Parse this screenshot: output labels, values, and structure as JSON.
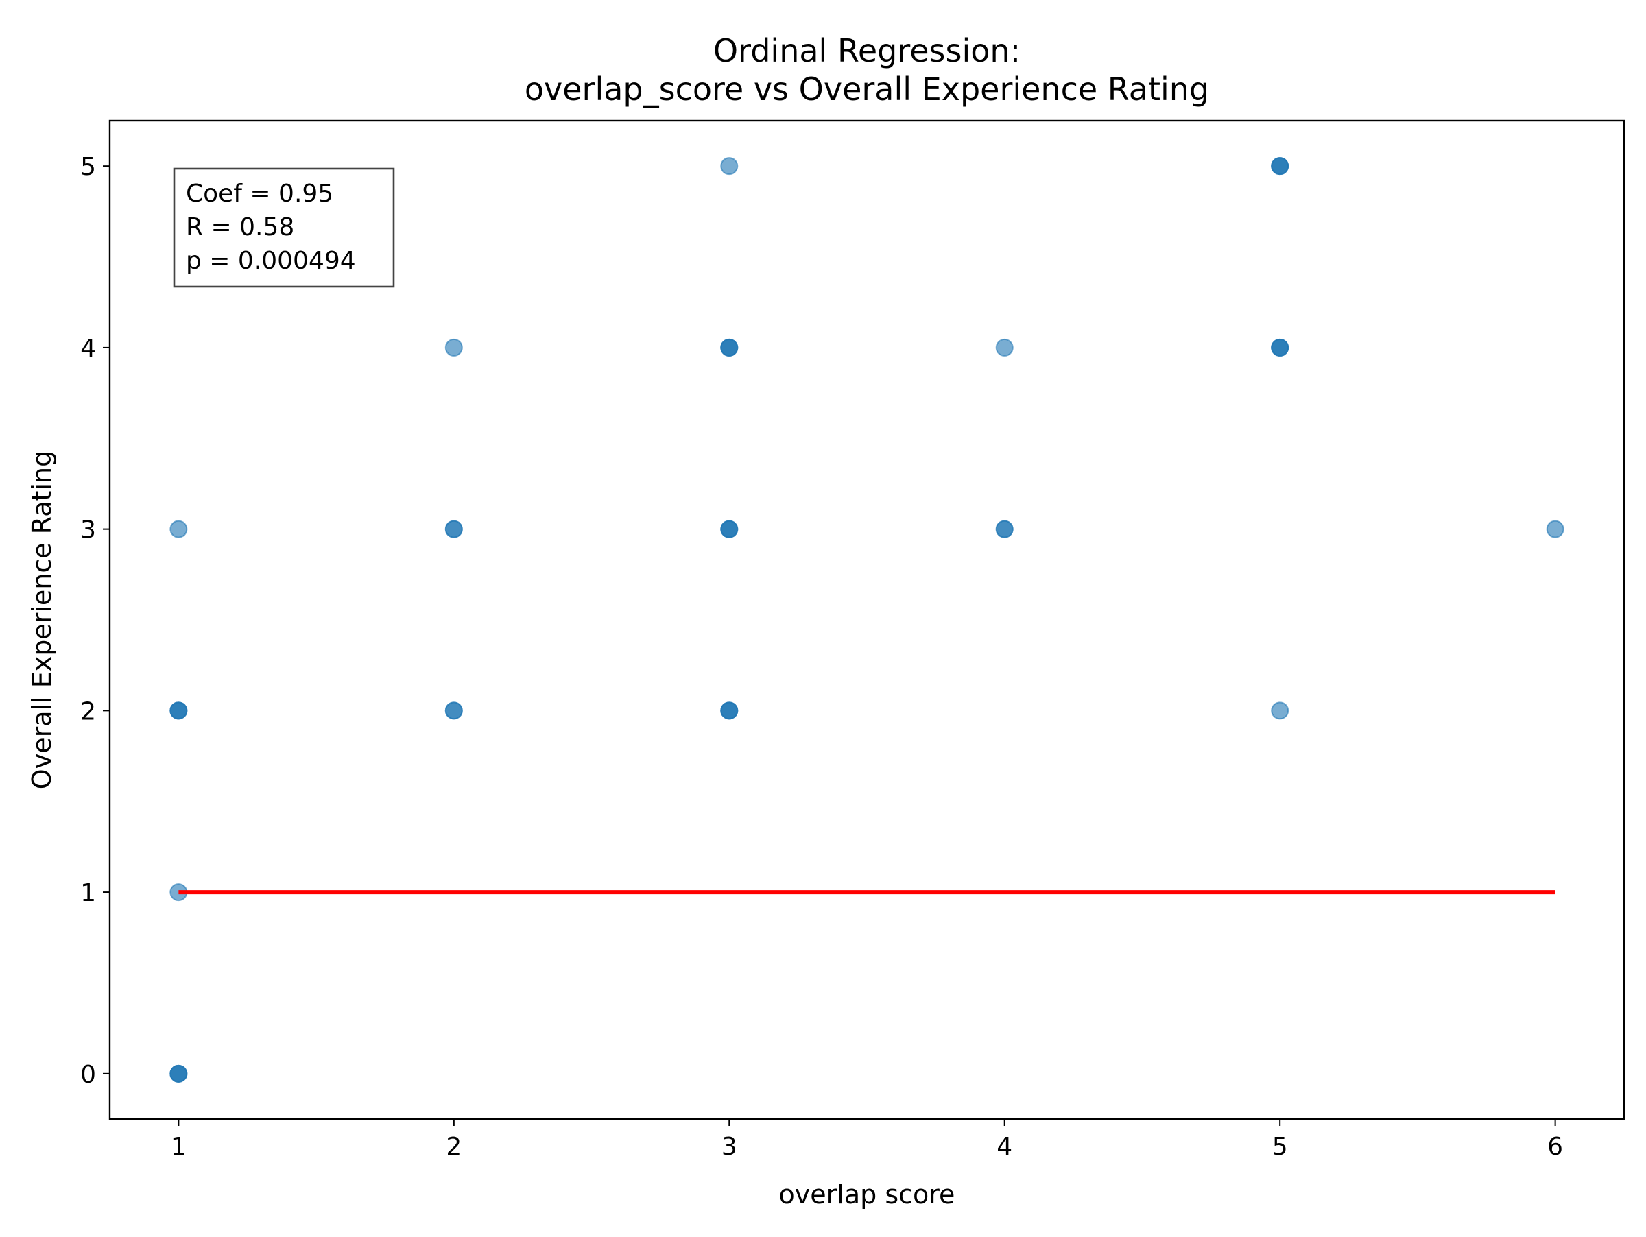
{
  "chart_data": {
    "type": "scatter",
    "title": [
      "Ordinal Regression:",
      "overlap_score vs Overall Experience Rating"
    ],
    "xlabel": "overlap score",
    "ylabel": "Overall Experience Rating",
    "xlim": [
      0.75,
      6.25
    ],
    "ylim": [
      -0.25,
      5.25
    ],
    "xticks": [
      "1",
      "2",
      "3",
      "4",
      "5",
      "6"
    ],
    "yticks": [
      "0",
      "1",
      "2",
      "3",
      "4",
      "5"
    ],
    "grid": false,
    "points": [
      {
        "x": 1,
        "y": 0,
        "n": 3
      },
      {
        "x": 1,
        "y": 1,
        "n": 1
      },
      {
        "x": 1,
        "y": 2,
        "n": 3
      },
      {
        "x": 1,
        "y": 3,
        "n": 1
      },
      {
        "x": 2,
        "y": 2,
        "n": 2
      },
      {
        "x": 2,
        "y": 3,
        "n": 2
      },
      {
        "x": 2,
        "y": 4,
        "n": 1
      },
      {
        "x": 3,
        "y": 2,
        "n": 3
      },
      {
        "x": 3,
        "y": 3,
        "n": 3
      },
      {
        "x": 3,
        "y": 4,
        "n": 3
      },
      {
        "x": 3,
        "y": 5,
        "n": 1
      },
      {
        "x": 4,
        "y": 3,
        "n": 2
      },
      {
        "x": 4,
        "y": 4,
        "n": 1
      },
      {
        "x": 5,
        "y": 2,
        "n": 1
      },
      {
        "x": 5,
        "y": 4,
        "n": 3
      },
      {
        "x": 5,
        "y": 5,
        "n": 3
      },
      {
        "x": 6,
        "y": 3,
        "n": 1
      }
    ],
    "fit_line": {
      "x": [
        1,
        6
      ],
      "y": [
        1,
        1
      ],
      "color": "#ff0000"
    },
    "point_color": "#1f77b4",
    "stats": [
      "Coef = 0.95",
      "R = 0.58",
      "p = 0.000494"
    ],
    "stats_position": "top-left"
  }
}
